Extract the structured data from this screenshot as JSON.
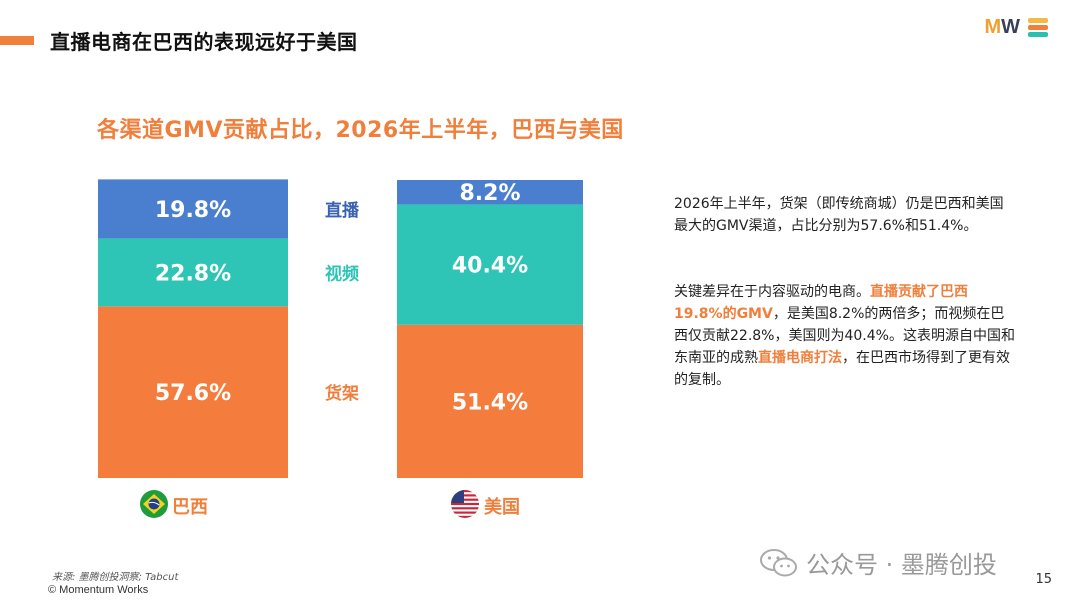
{
  "header": {
    "title": "直播电商在巴西的表现远好于美国"
  },
  "logo": {
    "letters_left": "M",
    "letters_right": "W",
    "colors": [
      "#f4b942",
      "#f07f3c",
      "#2bbfb0"
    ]
  },
  "chart_data": {
    "type": "bar",
    "stacked": true,
    "normalized": true,
    "title": "各渠道GMV贡献占比，2026年上半年，巴西与美国",
    "categories": [
      "巴西",
      "美国"
    ],
    "series": [
      {
        "name": "货架",
        "values": [
          57.6,
          51.4
        ],
        "labels": [
          "57.6%",
          "51.4%"
        ],
        "color": "#f47c3c",
        "label_color": "#f47c3c"
      },
      {
        "name": "视频",
        "values": [
          22.8,
          40.4
        ],
        "labels": [
          "22.8%",
          "40.4%"
        ],
        "color": "#2ec4b6",
        "label_color": "#2ec4b6"
      },
      {
        "name": "直播",
        "values": [
          19.8,
          8.2
        ],
        "labels": [
          "19.8%",
          "8.2%"
        ],
        "color": "#4a7fcf",
        "label_color": "#3a62b3"
      }
    ],
    "ylim": [
      0,
      100
    ],
    "legend": "between-bars"
  },
  "flags": [
    "brazil-flag",
    "usa-flag"
  ],
  "description": {
    "p1": "2026年上半年，货架（即传统商城）仍是巴西和美国最大的GMV渠道，占比分别为57.6%和51.4%。",
    "p2_a": "关键差异在于内容驱动的电商。",
    "p2_hl1": "直播贡献了巴西19.8%的GMV",
    "p2_b": "，是美国8.2%的两倍多；而视频在巴西仅贡献22.8%，美国则为40.4%。这表明源自中国和东南亚的成熟",
    "p2_hl2": "直播电商打法",
    "p2_c": "，在巴西市场得到了更有效的复制。"
  },
  "footer": {
    "source": "来源: 墨腾创投洞察; Tabcut",
    "copyright": "© Momentum Works",
    "page_number": "15",
    "watermark": "公众号 · 墨腾创投"
  }
}
